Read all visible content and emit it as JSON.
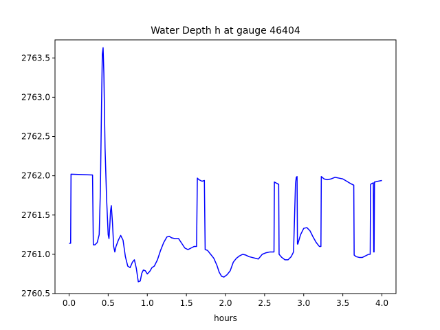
{
  "chart_data": {
    "type": "line",
    "title": "Water Depth h at gauge 46404",
    "xlabel": "hours",
    "ylabel": "",
    "xlim": [
      -0.18,
      4.18
    ],
    "ylim": [
      2760.5,
      2763.73
    ],
    "xticks": [
      0.0,
      0.5,
      1.0,
      1.5,
      2.0,
      2.5,
      3.0,
      3.5,
      4.0
    ],
    "xtick_labels": [
      "0.0",
      "0.5",
      "1.0",
      "1.5",
      "2.0",
      "2.5",
      "3.0",
      "3.5",
      "4.0"
    ],
    "yticks": [
      2760.5,
      2761.0,
      2761.5,
      2762.0,
      2762.5,
      2763.0,
      2763.5
    ],
    "ytick_labels": [
      "2760.5",
      "2761.0",
      "2761.5",
      "2762.0",
      "2762.5",
      "2763.0",
      "2763.5"
    ],
    "grid": false,
    "series": [
      {
        "name": "",
        "color": "#0000ff",
        "x": [
          0.0,
          0.02,
          0.025,
          0.3,
          0.31,
          0.33,
          0.36,
          0.385,
          0.4,
          0.415,
          0.425,
          0.435,
          0.445,
          0.46,
          0.48,
          0.5,
          0.51,
          0.52,
          0.53,
          0.54,
          0.555,
          0.57,
          0.585,
          0.6,
          0.63,
          0.66,
          0.69,
          0.72,
          0.75,
          0.78,
          0.81,
          0.835,
          0.86,
          0.885,
          0.91,
          0.93,
          0.95,
          0.975,
          1.0,
          1.03,
          1.06,
          1.09,
          1.13,
          1.17,
          1.21,
          1.25,
          1.28,
          1.31,
          1.35,
          1.4,
          1.44,
          1.48,
          1.52,
          1.56,
          1.6,
          1.63,
          1.64,
          1.66,
          1.7,
          1.73,
          1.74,
          1.77,
          1.81,
          1.85,
          1.89,
          1.92,
          1.95,
          1.98,
          2.02,
          2.06,
          2.1,
          2.14,
          2.18,
          2.22,
          2.26,
          2.3,
          2.34,
          2.38,
          2.42,
          2.47,
          2.52,
          2.57,
          2.62,
          2.625,
          2.68,
          2.685,
          2.72,
          2.76,
          2.8,
          2.84,
          2.87,
          2.895,
          2.905,
          2.915,
          2.92,
          2.925,
          2.93,
          2.96,
          3.0,
          3.04,
          3.08,
          3.12,
          3.16,
          3.2,
          3.22,
          3.225,
          3.26,
          3.3,
          3.35,
          3.4,
          3.45,
          3.5,
          3.55,
          3.6,
          3.64,
          3.645,
          3.67,
          3.71,
          3.75,
          3.79,
          3.83,
          3.85,
          3.855,
          3.87,
          3.89,
          3.895,
          3.9,
          3.905,
          3.91,
          3.95,
          4.0
        ],
        "y": [
          2761.14,
          2761.14,
          2762.02,
          2762.01,
          2761.12,
          2761.12,
          2761.15,
          2761.25,
          2761.8,
          2762.9,
          2763.55,
          2763.63,
          2763.3,
          2762.35,
          2761.7,
          2761.25,
          2761.2,
          2761.35,
          2761.55,
          2761.62,
          2761.4,
          2761.1,
          2761.03,
          2761.1,
          2761.18,
          2761.24,
          2761.18,
          2760.97,
          2760.85,
          2760.83,
          2760.9,
          2760.93,
          2760.82,
          2760.65,
          2760.66,
          2760.76,
          2760.8,
          2760.79,
          2760.75,
          2760.78,
          2760.83,
          2760.85,
          2760.93,
          2761.05,
          2761.15,
          2761.22,
          2761.23,
          2761.21,
          2761.2,
          2761.2,
          2761.14,
          2761.08,
          2761.06,
          2761.08,
          2761.1,
          2761.1,
          2761.97,
          2761.95,
          2761.93,
          2761.94,
          2761.06,
          2761.05,
          2761.0,
          2760.95,
          2760.86,
          2760.77,
          2760.72,
          2760.71,
          2760.74,
          2760.79,
          2760.9,
          2760.95,
          2760.98,
          2761.0,
          2760.99,
          2760.97,
          2760.96,
          2760.95,
          2760.94,
          2761.0,
          2761.02,
          2761.03,
          2761.03,
          2761.92,
          2761.89,
          2761.0,
          2760.96,
          2760.93,
          2760.93,
          2760.97,
          2761.03,
          2761.9,
          2761.98,
          2761.99,
          2761.13,
          2761.13,
          2761.15,
          2761.25,
          2761.33,
          2761.34,
          2761.3,
          2761.22,
          2761.15,
          2761.1,
          2761.1,
          2761.99,
          2761.96,
          2761.95,
          2761.96,
          2761.98,
          2761.97,
          2761.96,
          2761.93,
          2761.9,
          2761.88,
          2760.99,
          2760.97,
          2760.96,
          2760.96,
          2760.98,
          2761.0,
          2761.0,
          2761.89,
          2761.9,
          2761.91,
          2761.03,
          2761.03,
          2761.92,
          2761.92,
          2761.93,
          2761.94
        ]
      }
    ]
  }
}
